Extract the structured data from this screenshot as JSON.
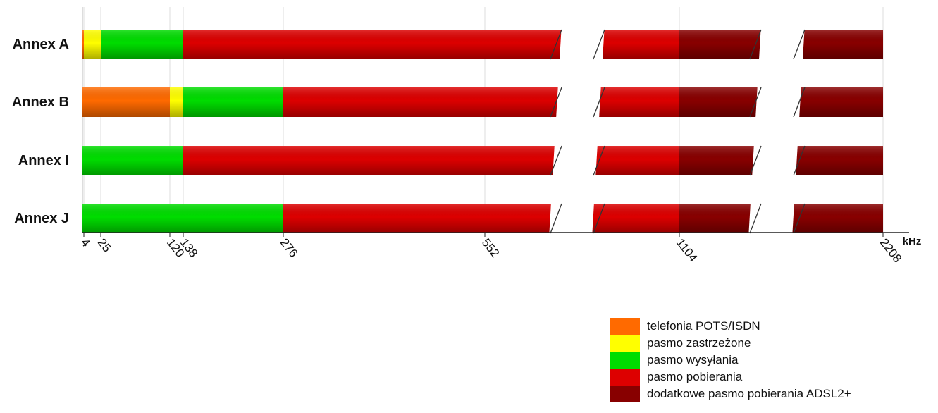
{
  "chart_data": {
    "type": "bar",
    "orientation": "horizontal-stacked",
    "title": "",
    "xlabel": "kHz",
    "ylabel": "",
    "x_ticks": [
      "4",
      "25",
      "120",
      "138",
      "276",
      "552",
      "1104",
      "2208"
    ],
    "xlim": [
      0,
      2208
    ],
    "axis_breaks": [
      [
        650,
        800
      ],
      [
        1550,
        1750
      ]
    ],
    "grid": true,
    "categories": [
      "Annex A",
      "Annex B",
      "Annex I",
      "Annex J"
    ],
    "bands": [
      {
        "key": "pots",
        "name": "telefonia POTS/ISDN",
        "color": "#ff6a00"
      },
      {
        "key": "reserved",
        "name": "pasmo zastrzeżone",
        "color": "#ffff00"
      },
      {
        "key": "upstream",
        "name": "pasmo wysyłania",
        "color": "#00dd00"
      },
      {
        "key": "downstream",
        "name": "pasmo pobierania",
        "color": "#dd0000"
      },
      {
        "key": "adsl2plus",
        "name": "dodatkowe pasmo pobierania ADSL2+",
        "color": "#880000"
      }
    ],
    "rows": [
      {
        "label": "Annex A",
        "segments": [
          {
            "band": "pots",
            "from": 0,
            "to": 4
          },
          {
            "band": "reserved",
            "from": 4,
            "to": 25
          },
          {
            "band": "upstream",
            "from": 25,
            "to": 138
          },
          {
            "band": "downstream",
            "from": 138,
            "to": 1104
          },
          {
            "band": "adsl2plus",
            "from": 1104,
            "to": 2208
          }
        ]
      },
      {
        "label": "Annex B",
        "segments": [
          {
            "band": "pots",
            "from": 0,
            "to": 120
          },
          {
            "band": "reserved",
            "from": 120,
            "to": 138
          },
          {
            "band": "upstream",
            "from": 138,
            "to": 276
          },
          {
            "band": "downstream",
            "from": 276,
            "to": 1104
          },
          {
            "band": "adsl2plus",
            "from": 1104,
            "to": 2208
          }
        ]
      },
      {
        "label": "Annex I",
        "segments": [
          {
            "band": "upstream",
            "from": 0,
            "to": 138
          },
          {
            "band": "downstream",
            "from": 138,
            "to": 1104
          },
          {
            "band": "adsl2plus",
            "from": 1104,
            "to": 2208
          }
        ]
      },
      {
        "label": "Annex J",
        "segments": [
          {
            "band": "upstream",
            "from": 0,
            "to": 276
          },
          {
            "band": "downstream",
            "from": 276,
            "to": 1104
          },
          {
            "band": "adsl2plus",
            "from": 1104,
            "to": 2208
          }
        ]
      }
    ],
    "legend": {
      "placement": "bottom-right",
      "items": [
        {
          "label": "telefonia POTS/ISDN",
          "color": "#ff6a00"
        },
        {
          "label": "pasmo zastrzeżone",
          "color": "#ffff00"
        },
        {
          "label": "pasmo wysyłania",
          "color": "#00dd00"
        },
        {
          "label": "pasmo pobierania",
          "color": "#dd0000"
        },
        {
          "label": "dodatkowe pasmo pobierania ADSL2+",
          "color": "#880000"
        }
      ]
    }
  }
}
